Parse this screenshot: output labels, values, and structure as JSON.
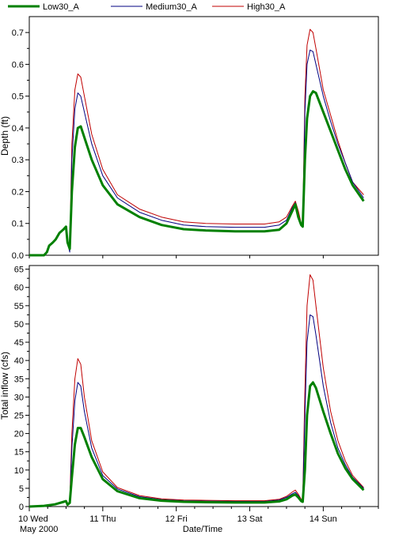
{
  "chart_data": [
    {
      "type": "line",
      "ylabel": "Depth (ft)",
      "ylim": [
        0,
        0.75
      ],
      "yticks": [
        0.0,
        0.1,
        0.2,
        0.3,
        0.4,
        0.5,
        0.6,
        0.7
      ],
      "ytick_labels": [
        "0.0",
        "0.1",
        "0.2",
        "0.3",
        "0.4",
        "0.5",
        "0.6",
        "0.7"
      ],
      "series": [
        {
          "name": "Low30_A",
          "color": "#008000",
          "points": [
            [
              0.0,
              0
            ],
            [
              0.2,
              0
            ],
            [
              0.24,
              0.01
            ],
            [
              0.27,
              0.03
            ],
            [
              0.32,
              0.04
            ],
            [
              0.36,
              0.05
            ],
            [
              0.41,
              0.07
            ],
            [
              0.46,
              0.08
            ],
            [
              0.5,
              0.09
            ],
            [
              0.52,
              0.04
            ],
            [
              0.55,
              0.02
            ],
            [
              0.58,
              0.2
            ],
            [
              0.62,
              0.34
            ],
            [
              0.66,
              0.4
            ],
            [
              0.7,
              0.405
            ],
            [
              0.75,
              0.37
            ],
            [
              0.85,
              0.3
            ],
            [
              1.0,
              0.22
            ],
            [
              1.2,
              0.16
            ],
            [
              1.5,
              0.12
            ],
            [
              1.8,
              0.095
            ],
            [
              2.1,
              0.082
            ],
            [
              2.4,
              0.078
            ],
            [
              2.8,
              0.075
            ],
            [
              3.2,
              0.075
            ],
            [
              3.4,
              0.08
            ],
            [
              3.5,
              0.1
            ],
            [
              3.58,
              0.14
            ],
            [
              3.62,
              0.16
            ],
            [
              3.66,
              0.12
            ],
            [
              3.7,
              0.095
            ],
            [
              3.72,
              0.09
            ],
            [
              3.75,
              0.3
            ],
            [
              3.78,
              0.43
            ],
            [
              3.82,
              0.5
            ],
            [
              3.86,
              0.515
            ],
            [
              3.9,
              0.51
            ],
            [
              4.0,
              0.45
            ],
            [
              4.1,
              0.39
            ],
            [
              4.2,
              0.33
            ],
            [
              4.3,
              0.27
            ],
            [
              4.4,
              0.22
            ],
            [
              4.55,
              0.17
            ]
          ]
        },
        {
          "name": "Medium30_A",
          "color": "#000080",
          "points": [
            [
              0.5,
              0.09
            ],
            [
              0.52,
              0.04
            ],
            [
              0.55,
              0.01
            ],
            [
              0.58,
              0.3
            ],
            [
              0.62,
              0.46
            ],
            [
              0.66,
              0.51
            ],
            [
              0.7,
              0.5
            ],
            [
              0.75,
              0.45
            ],
            [
              0.85,
              0.35
            ],
            [
              1.0,
              0.25
            ],
            [
              1.2,
              0.18
            ],
            [
              1.5,
              0.135
            ],
            [
              1.8,
              0.11
            ],
            [
              2.1,
              0.095
            ],
            [
              2.4,
              0.09
            ],
            [
              2.8,
              0.088
            ],
            [
              3.2,
              0.088
            ],
            [
              3.4,
              0.095
            ],
            [
              3.5,
              0.11
            ],
            [
              3.58,
              0.15
            ],
            [
              3.62,
              0.165
            ],
            [
              3.66,
              0.13
            ],
            [
              3.7,
              0.095
            ],
            [
              3.72,
              0.09
            ],
            [
              3.75,
              0.45
            ],
            [
              3.78,
              0.6
            ],
            [
              3.82,
              0.645
            ],
            [
              3.86,
              0.64
            ],
            [
              3.9,
              0.6
            ],
            [
              4.0,
              0.5
            ],
            [
              4.1,
              0.42
            ],
            [
              4.2,
              0.35
            ],
            [
              4.3,
              0.29
            ],
            [
              4.4,
              0.23
            ],
            [
              4.55,
              0.18
            ]
          ]
        },
        {
          "name": "High30_A",
          "color": "#c00000",
          "points": [
            [
              0.5,
              0.09
            ],
            [
              0.52,
              0.05
            ],
            [
              0.55,
              0.02
            ],
            [
              0.58,
              0.35
            ],
            [
              0.62,
              0.52
            ],
            [
              0.66,
              0.57
            ],
            [
              0.7,
              0.56
            ],
            [
              0.75,
              0.5
            ],
            [
              0.85,
              0.38
            ],
            [
              1.0,
              0.27
            ],
            [
              1.2,
              0.19
            ],
            [
              1.5,
              0.145
            ],
            [
              1.8,
              0.12
            ],
            [
              2.1,
              0.105
            ],
            [
              2.4,
              0.1
            ],
            [
              2.8,
              0.098
            ],
            [
              3.2,
              0.098
            ],
            [
              3.4,
              0.105
            ],
            [
              3.5,
              0.12
            ],
            [
              3.58,
              0.155
            ],
            [
              3.62,
              0.17
            ],
            [
              3.66,
              0.14
            ],
            [
              3.7,
              0.1
            ],
            [
              3.72,
              0.095
            ],
            [
              3.75,
              0.5
            ],
            [
              3.78,
              0.66
            ],
            [
              3.82,
              0.71
            ],
            [
              3.86,
              0.7
            ],
            [
              3.9,
              0.65
            ],
            [
              4.0,
              0.52
            ],
            [
              4.1,
              0.44
            ],
            [
              4.2,
              0.36
            ],
            [
              4.3,
              0.29
            ],
            [
              4.4,
              0.23
            ],
            [
              4.55,
              0.19
            ]
          ]
        }
      ]
    },
    {
      "type": "line",
      "ylabel": "Total inflow (cfs)",
      "xlabel": "Date/Time",
      "ylim": [
        0,
        66
      ],
      "yticks": [
        0,
        5,
        10,
        15,
        20,
        25,
        30,
        35,
        40,
        45,
        50,
        55,
        60,
        65
      ],
      "ytick_labels": [
        "0",
        "5",
        "10",
        "15",
        "20",
        "25",
        "30",
        "35",
        "40",
        "45",
        "50",
        "55",
        "60",
        "65"
      ],
      "x_tick_values": [
        0,
        1,
        2,
        3,
        4
      ],
      "x_tick_labels": [
        "10 Wed",
        "11 Thu",
        "12 Fri",
        "13 Sat",
        "14 Sun"
      ],
      "x_sublabel": "May 2000",
      "xlim": [
        0,
        4.75
      ],
      "series": [
        {
          "name": "Low30_A",
          "color": "#008000",
          "points": [
            [
              0.0,
              0
            ],
            [
              0.2,
              0.2
            ],
            [
              0.35,
              0.6
            ],
            [
              0.45,
              1.2
            ],
            [
              0.5,
              1.5
            ],
            [
              0.52,
              0.5
            ],
            [
              0.55,
              1.0
            ],
            [
              0.58,
              8
            ],
            [
              0.62,
              17
            ],
            [
              0.66,
              21.5
            ],
            [
              0.7,
              21.5
            ],
            [
              0.75,
              19
            ],
            [
              0.85,
              13.5
            ],
            [
              1.0,
              7.5
            ],
            [
              1.2,
              4.2
            ],
            [
              1.5,
              2.3
            ],
            [
              1.8,
              1.6
            ],
            [
              2.1,
              1.3
            ],
            [
              2.4,
              1.2
            ],
            [
              2.8,
              1.1
            ],
            [
              3.2,
              1.1
            ],
            [
              3.4,
              1.4
            ],
            [
              3.5,
              2.0
            ],
            [
              3.58,
              3.0
            ],
            [
              3.62,
              3.3
            ],
            [
              3.66,
              2.5
            ],
            [
              3.7,
              1.5
            ],
            [
              3.72,
              1.3
            ],
            [
              3.75,
              10
            ],
            [
              3.78,
              25
            ],
            [
              3.82,
              33
            ],
            [
              3.86,
              34
            ],
            [
              3.9,
              32.5
            ],
            [
              4.0,
              26
            ],
            [
              4.1,
              20
            ],
            [
              4.2,
              14.5
            ],
            [
              4.3,
              10.5
            ],
            [
              4.4,
              7.5
            ],
            [
              4.55,
              4.5
            ]
          ]
        },
        {
          "name": "Medium30_A",
          "color": "#000080",
          "points": [
            [
              0.5,
              1.5
            ],
            [
              0.52,
              0.5
            ],
            [
              0.55,
              1.2
            ],
            [
              0.58,
              16
            ],
            [
              0.62,
              29
            ],
            [
              0.66,
              34
            ],
            [
              0.7,
              33
            ],
            [
              0.75,
              26
            ],
            [
              0.85,
              16
            ],
            [
              1.0,
              8.5
            ],
            [
              1.2,
              4.8
            ],
            [
              1.5,
              2.7
            ],
            [
              1.8,
              1.9
            ],
            [
              2.1,
              1.6
            ],
            [
              2.4,
              1.5
            ],
            [
              2.8,
              1.4
            ],
            [
              3.2,
              1.4
            ],
            [
              3.4,
              1.8
            ],
            [
              3.5,
              2.5
            ],
            [
              3.58,
              3.5
            ],
            [
              3.62,
              3.9
            ],
            [
              3.66,
              3.0
            ],
            [
              3.7,
              1.8
            ],
            [
              3.72,
              1.5
            ],
            [
              3.75,
              25
            ],
            [
              3.78,
              45
            ],
            [
              3.82,
              52.5
            ],
            [
              3.86,
              52
            ],
            [
              3.9,
              47
            ],
            [
              4.0,
              33
            ],
            [
              4.1,
              23
            ],
            [
              4.2,
              16
            ],
            [
              4.3,
              11.5
            ],
            [
              4.4,
              8
            ],
            [
              4.55,
              5
            ]
          ]
        },
        {
          "name": "High30_A",
          "color": "#c00000",
          "points": [
            [
              0.5,
              1.5
            ],
            [
              0.52,
              0.6
            ],
            [
              0.55,
              1.4
            ],
            [
              0.58,
              20
            ],
            [
              0.62,
              35
            ],
            [
              0.66,
              40.5
            ],
            [
              0.7,
              39
            ],
            [
              0.75,
              30
            ],
            [
              0.85,
              18
            ],
            [
              1.0,
              9.5
            ],
            [
              1.2,
              5.2
            ],
            [
              1.5,
              3.0
            ],
            [
              1.8,
              2.1
            ],
            [
              2.1,
              1.8
            ],
            [
              2.4,
              1.7
            ],
            [
              2.8,
              1.6
            ],
            [
              3.2,
              1.6
            ],
            [
              3.4,
              2.0
            ],
            [
              3.5,
              2.8
            ],
            [
              3.58,
              4.0
            ],
            [
              3.62,
              4.5
            ],
            [
              3.66,
              3.4
            ],
            [
              3.7,
              2.0
            ],
            [
              3.72,
              1.7
            ],
            [
              3.75,
              32
            ],
            [
              3.78,
              55
            ],
            [
              3.82,
              63.5
            ],
            [
              3.86,
              62
            ],
            [
              3.9,
              55
            ],
            [
              4.0,
              38
            ],
            [
              4.1,
              26
            ],
            [
              4.2,
              18
            ],
            [
              4.3,
              12.5
            ],
            [
              4.4,
              8.5
            ],
            [
              4.55,
              5.2
            ]
          ]
        }
      ]
    }
  ]
}
